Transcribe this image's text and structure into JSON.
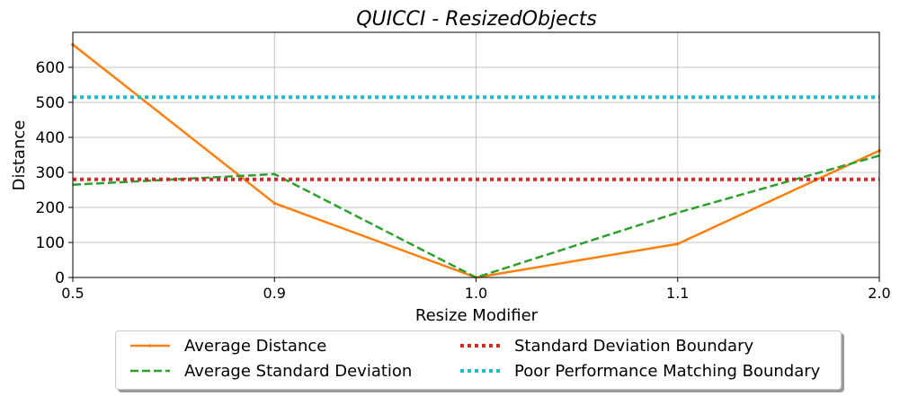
{
  "chart_data": {
    "type": "line",
    "title": "QUICCI - ResizedObjects",
    "xlabel": "Resize Modifier",
    "ylabel": "Distance",
    "categories": [
      "0.5",
      "0.9",
      "1.0",
      "1.1",
      "2.0"
    ],
    "ylim": [
      0,
      700
    ],
    "yticks": [
      "0",
      "100",
      "200",
      "300",
      "400",
      "500",
      "600"
    ],
    "grid": true,
    "legend_placement": "bottom-center",
    "series": [
      {
        "name": "Average Distance",
        "values": [
          665,
          212,
          0,
          96,
          362
        ],
        "color": "#ff7f0e",
        "style": "solid"
      },
      {
        "name": "Average Standard Deviation",
        "values": [
          265,
          295,
          0,
          185,
          348
        ],
        "color": "#2ca02c",
        "style": "dashed"
      },
      {
        "name": "Standard Deviation Boundary",
        "values": [
          280,
          280,
          280,
          280,
          280
        ],
        "color": "#d62728",
        "style": "dotted"
      },
      {
        "name": "Poor Performance Matching Boundary",
        "values": [
          515,
          515,
          515,
          515,
          515
        ],
        "color": "#17becf",
        "style": "dotted"
      }
    ]
  }
}
